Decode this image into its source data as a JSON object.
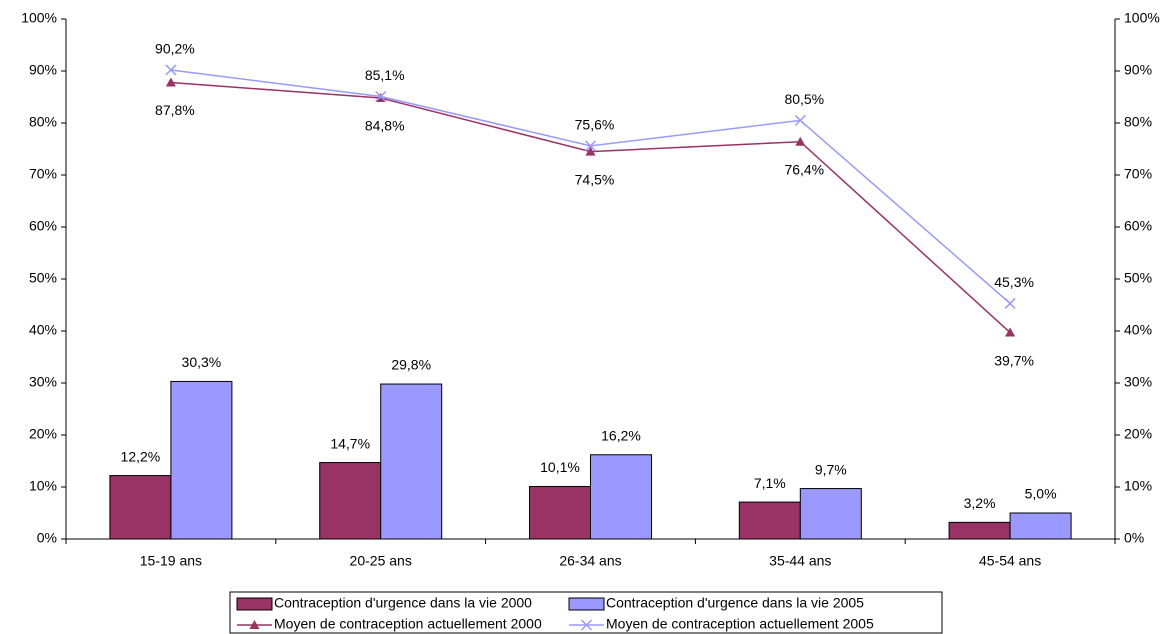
{
  "chart_data": {
    "type": "combo",
    "categories": [
      "15-19 ans",
      "20-25 ans",
      "26-34 ans",
      "35-44 ans",
      "45-54 ans"
    ],
    "series": [
      {
        "name": "Contraception d'urgence dans la vie 2000",
        "type": "bar",
        "color": "#993366",
        "values": [
          12.2,
          14.7,
          10.1,
          7.1,
          3.2
        ],
        "value_labels": [
          "12,2%",
          "14,7%",
          "10,1%",
          "7,1%",
          "3,2%"
        ]
      },
      {
        "name": "Contraception d'urgence dans la vie 2005",
        "type": "bar",
        "color": "#9999ff",
        "values": [
          30.3,
          29.8,
          16.2,
          9.7,
          5.0
        ],
        "value_labels": [
          "30,3%",
          "29,8%",
          "16,2%",
          "9,7%",
          "5,0%"
        ]
      },
      {
        "name": "Moyen de contraception actuellement 2000",
        "type": "line",
        "marker": "triangle",
        "axis": "y2",
        "color": "#993366",
        "values": [
          87.8,
          84.8,
          74.5,
          76.4,
          39.7
        ],
        "value_labels": [
          "87,8%",
          "84,8%",
          "74,5%",
          "76,4%",
          "39,7%"
        ]
      },
      {
        "name": "Moyen de contraception actuellement 2005",
        "type": "line",
        "marker": "x",
        "axis": "y2",
        "color": "#9999ff",
        "values": [
          90.2,
          85.1,
          75.6,
          80.5,
          45.3
        ],
        "value_labels": [
          "90,2%",
          "85,1%",
          "75,6%",
          "80,5%",
          "45,3%"
        ]
      }
    ],
    "ylim": [
      0,
      100
    ],
    "yticks": [
      {
        "value": 0,
        "label": "0%"
      },
      {
        "value": 10,
        "label": "10%"
      },
      {
        "value": 20,
        "label": "20%"
      },
      {
        "value": 30,
        "label": "30%"
      },
      {
        "value": 40,
        "label": "40%"
      },
      {
        "value": 50,
        "label": "50%"
      },
      {
        "value": 60,
        "label": "60%"
      },
      {
        "value": 70,
        "label": "70%"
      },
      {
        "value": 80,
        "label": "80%"
      },
      {
        "value": 90,
        "label": "90%"
      },
      {
        "value": 100,
        "label": "100%"
      }
    ],
    "y2lim": [
      0,
      100
    ],
    "y2ticks": [
      {
        "value": 0,
        "label": "0%"
      },
      {
        "value": 10,
        "label": "10%"
      },
      {
        "value": 20,
        "label": "20%"
      },
      {
        "value": 30,
        "label": "30%"
      },
      {
        "value": 40,
        "label": "40%"
      },
      {
        "value": 50,
        "label": "50%"
      },
      {
        "value": 60,
        "label": "60%"
      },
      {
        "value": 70,
        "label": "70%"
      },
      {
        "value": 80,
        "label": "80%"
      },
      {
        "value": 90,
        "label": "90%"
      },
      {
        "value": 100,
        "label": "100%"
      }
    ],
    "legend": "bottom"
  }
}
